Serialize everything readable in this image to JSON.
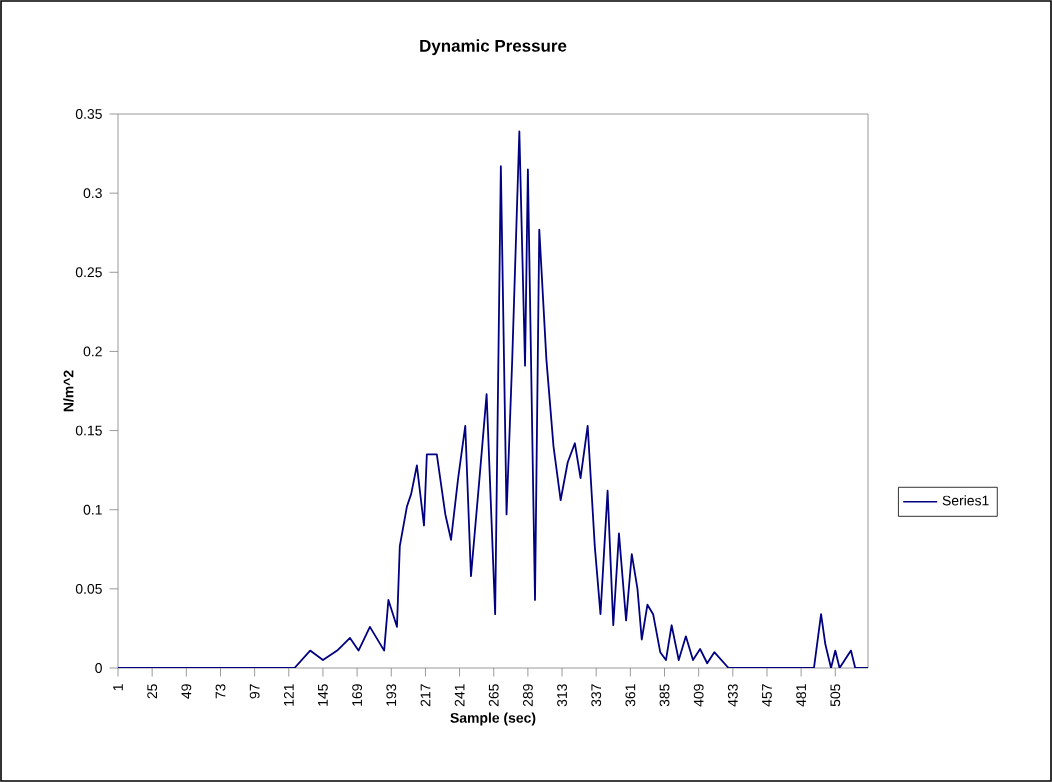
{
  "chart_data": {
    "type": "line",
    "title": "Dynamic Pressure",
    "xlabel": "Sample (sec)",
    "ylabel": "N/m^2",
    "xlim": [
      1,
      528
    ],
    "xticks": [
      1,
      25,
      49,
      73,
      97,
      121,
      145,
      169,
      193,
      217,
      241,
      265,
      289,
      313,
      337,
      361,
      385,
      409,
      433,
      457,
      481,
      505
    ],
    "ylim": [
      0,
      0.35
    ],
    "yticks": [
      0,
      0.05,
      0.1,
      0.15,
      0.2,
      0.25,
      0.3,
      0.35
    ],
    "legend": "right",
    "grid": false,
    "series": [
      {
        "name": "Series1",
        "color": "#000080",
        "x": [
          1,
          125,
          136,
          145,
          155,
          164,
          170,
          178,
          188,
          191,
          197,
          199,
          204,
          207,
          211,
          216,
          218,
          225,
          231,
          235,
          240,
          245,
          249,
          255,
          260,
          266,
          270,
          274,
          278,
          283,
          287,
          289,
          294,
          297,
          302,
          307,
          312,
          317,
          322,
          326,
          331,
          336,
          340,
          345,
          349,
          353,
          358,
          362,
          366,
          369,
          373,
          377,
          382,
          386,
          390,
          395,
          400,
          405,
          410,
          415,
          420,
          430,
          490,
          495,
          498,
          502,
          505,
          508,
          516,
          519,
          528
        ],
        "values": [
          0,
          0,
          0.011,
          0.005,
          0.011,
          0.019,
          0.011,
          0.026,
          0.011,
          0.043,
          0.026,
          0.077,
          0.102,
          0.11,
          0.128,
          0.09,
          0.135,
          0.135,
          0.097,
          0.081,
          0.12,
          0.153,
          0.058,
          0.12,
          0.173,
          0.034,
          0.317,
          0.097,
          0.195,
          0.339,
          0.191,
          0.315,
          0.043,
          0.277,
          0.195,
          0.14,
          0.106,
          0.13,
          0.142,
          0.12,
          0.153,
          0.077,
          0.034,
          0.112,
          0.027,
          0.085,
          0.03,
          0.072,
          0.05,
          0.018,
          0.04,
          0.034,
          0.01,
          0.005,
          0.027,
          0.005,
          0.02,
          0.005,
          0.012,
          0.003,
          0.01,
          0,
          0,
          0.034,
          0.015,
          0,
          0.011,
          0,
          0.011,
          0,
          0
        ]
      }
    ]
  }
}
